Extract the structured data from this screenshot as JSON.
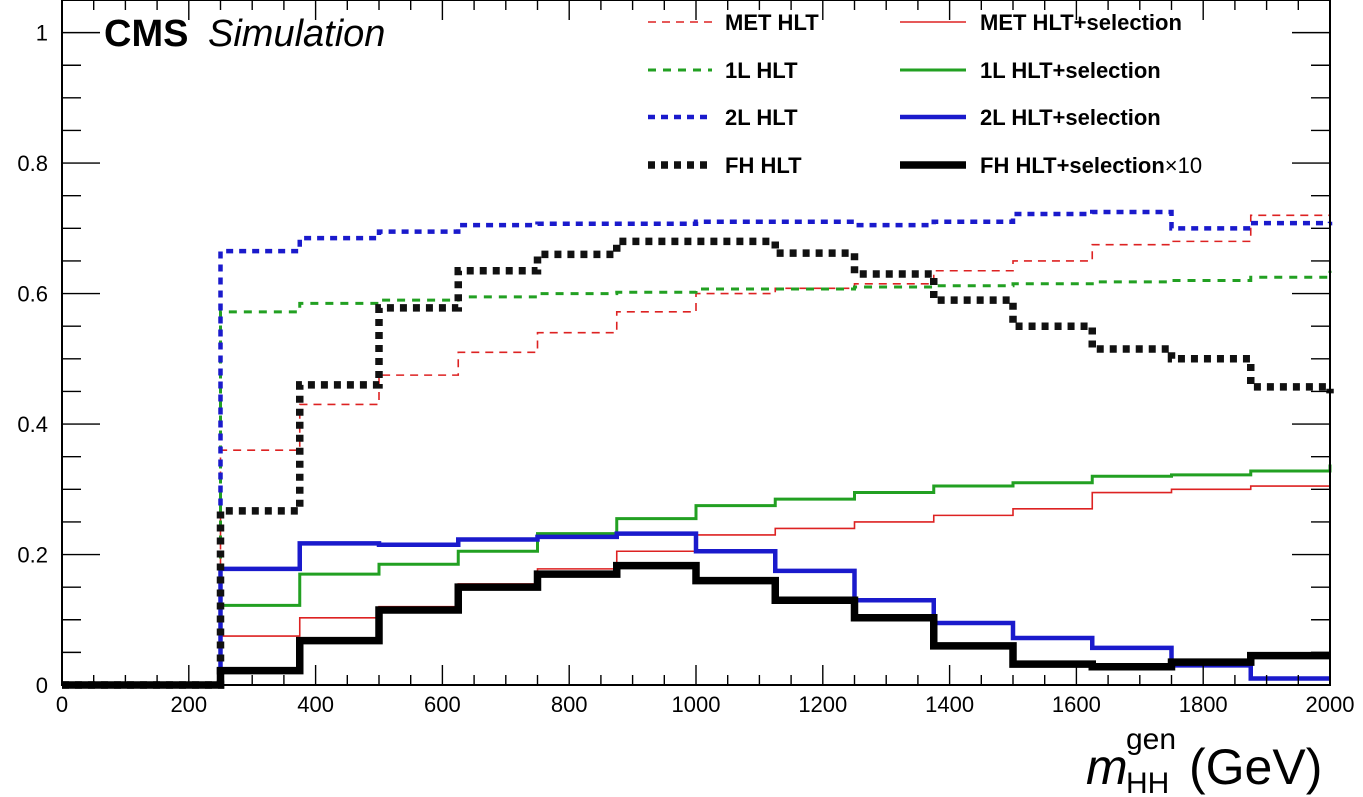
{
  "chart_data": {
    "type": "line",
    "experiment": "CMS",
    "status": "Simulation",
    "xlabel": {
      "symbol": "m",
      "sup": "gen",
      "sub": "HH",
      "unit": "(GeV)"
    },
    "ylabel": "",
    "xlim": [
      0,
      2000
    ],
    "ylim": [
      0,
      1.05
    ],
    "x_ticks": [
      "0",
      "200",
      "400",
      "600",
      "800",
      "1000",
      "1200",
      "1400",
      "1600",
      "1800",
      "2000"
    ],
    "y_ticks": [
      "0",
      "0.2",
      "0.4",
      "0.6",
      "0.8",
      "1"
    ],
    "grid": false,
    "legend_position": "top-right",
    "bin_edges": [
      0,
      125,
      250,
      375,
      500,
      625,
      750,
      875,
      1000,
      1125,
      1250,
      1375,
      1500,
      1625,
      1750,
      1875,
      2000
    ],
    "series": [
      {
        "name": "MET HLT",
        "color": "#dd2222",
        "style": "dashed",
        "width": "thin",
        "values": [
          0,
          0,
          0.36,
          0.43,
          0.475,
          0.51,
          0.54,
          0.572,
          0.6,
          0.608,
          0.615,
          0.635,
          0.65,
          0.675,
          0.68,
          0.72,
          0.725
        ]
      },
      {
        "name": "MET HLT+selection",
        "color": "#dd2222",
        "style": "solid",
        "width": "thin",
        "values": [
          0,
          0,
          0.075,
          0.103,
          0.12,
          0.155,
          0.178,
          0.205,
          0.23,
          0.24,
          0.25,
          0.26,
          0.27,
          0.295,
          0.3,
          0.305,
          0.315
        ]
      },
      {
        "name": "1L HLT",
        "color": "#22a022",
        "style": "dashed",
        "width": "medium",
        "values": [
          0,
          0,
          0.572,
          0.585,
          0.59,
          0.595,
          0.6,
          0.602,
          0.607,
          0.607,
          0.61,
          0.612,
          0.615,
          0.618,
          0.62,
          0.625,
          0.635
        ]
      },
      {
        "name": "1L HLT+selection",
        "color": "#22a022",
        "style": "solid",
        "width": "medium",
        "values": [
          0,
          0,
          0.122,
          0.17,
          0.185,
          0.205,
          0.232,
          0.255,
          0.275,
          0.285,
          0.295,
          0.305,
          0.31,
          0.32,
          0.322,
          0.328,
          0.338
        ]
      },
      {
        "name": "2L HLT",
        "color": "#1a1acc",
        "style": "dashed",
        "width": "thick",
        "values": [
          0,
          0,
          0.665,
          0.685,
          0.695,
          0.705,
          0.707,
          0.707,
          0.71,
          0.71,
          0.705,
          0.71,
          0.722,
          0.725,
          0.7,
          0.708,
          0.71
        ]
      },
      {
        "name": "2L HLT+selection",
        "color": "#1a1acc",
        "style": "solid",
        "width": "thick",
        "values": [
          0,
          0,
          0.178,
          0.217,
          0.215,
          0.223,
          0.227,
          0.232,
          0.205,
          0.175,
          0.13,
          0.095,
          0.072,
          0.057,
          0.03,
          0.01,
          0.01
        ]
      },
      {
        "name": "FH HLT",
        "color": "#111111",
        "style": "dashed",
        "width": "heavy",
        "values": [
          0,
          0,
          0.267,
          0.46,
          0.578,
          0.635,
          0.66,
          0.68,
          0.68,
          0.662,
          0.63,
          0.59,
          0.55,
          0.515,
          0.5,
          0.457,
          0.447
        ]
      },
      {
        "name": "FH HLT+selection",
        "label_suffix": "×10",
        "color": "#000000",
        "style": "solid",
        "width": "heavy",
        "values": [
          0,
          0,
          0.022,
          0.068,
          0.115,
          0.15,
          0.17,
          0.183,
          0.16,
          0.13,
          0.103,
          0.06,
          0.032,
          0.028,
          0.035,
          0.045,
          0.045
        ]
      }
    ]
  }
}
